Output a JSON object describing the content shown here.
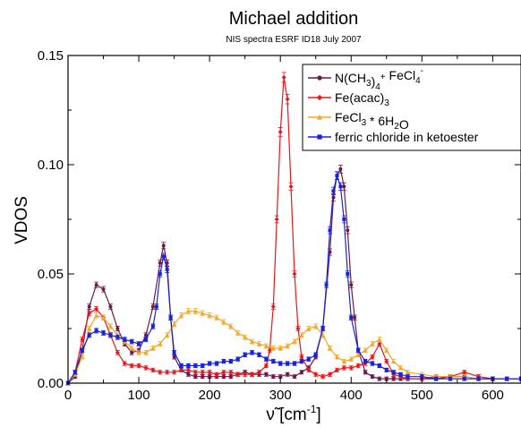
{
  "chart_data": {
    "type": "line",
    "title": "Michael addition",
    "subtitle": "NIS spectra ESRF ID18 July 2007",
    "xlabel": {
      "glyph": "ν̃",
      "open": " [cm",
      "sup": "-1",
      "close": "]"
    },
    "ylabel": "VDOS",
    "xlim": [
      0,
      640
    ],
    "ylim": [
      0,
      0.15
    ],
    "xticks": [
      "0",
      "100",
      "200",
      "300",
      "400",
      "500",
      "600"
    ],
    "yticks": [
      "0.00",
      "0.05",
      "0.10",
      "0.15"
    ],
    "legend_position": "top-right",
    "grid": false,
    "series": [
      {
        "name_parts": [
          [
            "N(CH",
            ""
          ],
          [
            "3",
            "sub"
          ],
          [
            ")",
            ""
          ],
          [
            "4",
            "sub"
          ],
          [
            "+",
            "sup"
          ],
          [
            " FeCl",
            ""
          ],
          [
            "4",
            "sub"
          ],
          [
            "-",
            "sup"
          ]
        ],
        "color": "#6b1a4a",
        "marker": "circle",
        "x": [
          0,
          10,
          20,
          30,
          40,
          50,
          60,
          70,
          80,
          90,
          100,
          110,
          120,
          130,
          135,
          140,
          145,
          150,
          160,
          170,
          180,
          190,
          200,
          210,
          220,
          230,
          240,
          250,
          260,
          270,
          280,
          290,
          300,
          310,
          320,
          330,
          340,
          350,
          360,
          370,
          375,
          380,
          385,
          390,
          395,
          400,
          405,
          410,
          420,
          430,
          440,
          450,
          460,
          470,
          480,
          500,
          520,
          540,
          560,
          580,
          600,
          620,
          640
        ],
        "y": [
          0.0,
          0.003,
          0.015,
          0.035,
          0.045,
          0.043,
          0.035,
          0.025,
          0.018,
          0.014,
          0.015,
          0.022,
          0.035,
          0.055,
          0.063,
          0.055,
          0.03,
          0.012,
          0.006,
          0.004,
          0.003,
          0.003,
          0.003,
          0.003,
          0.003,
          0.003,
          0.004,
          0.005,
          0.004,
          0.004,
          0.004,
          0.003,
          0.003,
          0.004,
          0.003,
          0.005,
          0.007,
          0.012,
          0.025,
          0.06,
          0.085,
          0.095,
          0.098,
          0.09,
          0.07,
          0.045,
          0.03,
          0.015,
          0.005,
          0.003,
          0.002,
          0.002,
          0.002,
          0.002,
          0.002,
          0.002,
          0.002,
          0.003,
          0.003,
          0.002,
          0.002,
          0.002,
          0.002
        ]
      },
      {
        "name_parts": [
          [
            "Fe(acac)",
            ""
          ],
          [
            "3",
            "sub"
          ]
        ],
        "color": "#e8161a",
        "marker": "diamond",
        "x": [
          0,
          10,
          20,
          30,
          40,
          50,
          60,
          70,
          80,
          90,
          100,
          110,
          120,
          130,
          140,
          150,
          160,
          170,
          180,
          190,
          200,
          210,
          220,
          230,
          240,
          250,
          260,
          270,
          280,
          285,
          290,
          295,
          300,
          305,
          310,
          315,
          320,
          325,
          330,
          340,
          350,
          360,
          370,
          380,
          390,
          400,
          410,
          420,
          430,
          440,
          450,
          460,
          470,
          480,
          500,
          520,
          540,
          560,
          580,
          600,
          620,
          640
        ],
        "y": [
          0.0,
          0.005,
          0.02,
          0.032,
          0.034,
          0.03,
          0.022,
          0.014,
          0.009,
          0.008,
          0.008,
          0.007,
          0.006,
          0.005,
          0.005,
          0.005,
          0.006,
          0.006,
          0.005,
          0.005,
          0.005,
          0.004,
          0.005,
          0.005,
          0.004,
          0.004,
          0.004,
          0.005,
          0.008,
          0.015,
          0.035,
          0.075,
          0.115,
          0.14,
          0.13,
          0.09,
          0.05,
          0.025,
          0.012,
          0.006,
          0.004,
          0.003,
          0.004,
          0.006,
          0.007,
          0.007,
          0.008,
          0.009,
          0.012,
          0.018,
          0.01,
          0.004,
          0.003,
          0.002,
          0.002,
          0.003,
          0.003,
          0.005,
          0.003,
          0.002,
          0.002,
          0.002
        ]
      },
      {
        "name_parts": [
          [
            "FeCl",
            ""
          ],
          [
            "3",
            "sub"
          ],
          [
            " * 6H",
            ""
          ],
          [
            "2",
            "sub"
          ],
          [
            "O",
            ""
          ]
        ],
        "color": "#f5a623",
        "marker": "triangle",
        "x": [
          0,
          10,
          20,
          30,
          40,
          50,
          60,
          70,
          80,
          90,
          100,
          110,
          120,
          130,
          140,
          150,
          160,
          170,
          180,
          190,
          200,
          210,
          220,
          230,
          240,
          250,
          260,
          270,
          280,
          290,
          300,
          310,
          320,
          330,
          340,
          350,
          360,
          370,
          380,
          390,
          400,
          410,
          420,
          430,
          440,
          450,
          460,
          470,
          480,
          500,
          520,
          540,
          560,
          580,
          600,
          620,
          640
        ],
        "y": [
          0.0,
          0.004,
          0.012,
          0.025,
          0.031,
          0.03,
          0.026,
          0.022,
          0.019,
          0.016,
          0.014,
          0.014,
          0.016,
          0.018,
          0.022,
          0.027,
          0.031,
          0.033,
          0.033,
          0.032,
          0.031,
          0.03,
          0.028,
          0.026,
          0.023,
          0.021,
          0.019,
          0.018,
          0.017,
          0.016,
          0.016,
          0.017,
          0.019,
          0.022,
          0.025,
          0.026,
          0.022,
          0.016,
          0.012,
          0.01,
          0.011,
          0.013,
          0.015,
          0.018,
          0.02,
          0.015,
          0.01,
          0.007,
          0.005,
          0.004,
          0.003,
          0.003,
          0.003,
          0.002,
          0.002,
          0.002,
          0.002
        ]
      },
      {
        "name_parts": [
          [
            "ferric chloride in ketoester",
            ""
          ]
        ],
        "color": "#1a22d8",
        "marker": "square",
        "x": [
          0,
          10,
          20,
          30,
          40,
          50,
          60,
          70,
          80,
          90,
          100,
          110,
          120,
          125,
          130,
          135,
          140,
          145,
          150,
          160,
          170,
          180,
          190,
          200,
          210,
          220,
          230,
          240,
          250,
          260,
          270,
          280,
          290,
          300,
          310,
          320,
          330,
          340,
          350,
          360,
          365,
          370,
          375,
          380,
          385,
          390,
          395,
          400,
          410,
          420,
          430,
          440,
          450,
          460,
          470,
          480,
          500,
          520,
          540,
          560,
          580,
          600,
          620,
          640
        ],
        "y": [
          0.0,
          0.005,
          0.015,
          0.022,
          0.024,
          0.023,
          0.022,
          0.021,
          0.02,
          0.019,
          0.018,
          0.02,
          0.026,
          0.035,
          0.05,
          0.058,
          0.052,
          0.03,
          0.014,
          0.008,
          0.008,
          0.008,
          0.008,
          0.009,
          0.009,
          0.01,
          0.01,
          0.011,
          0.013,
          0.014,
          0.013,
          0.011,
          0.01,
          0.009,
          0.009,
          0.009,
          0.01,
          0.011,
          0.013,
          0.025,
          0.045,
          0.07,
          0.088,
          0.095,
          0.09,
          0.075,
          0.05,
          0.03,
          0.015,
          0.01,
          0.009,
          0.008,
          0.006,
          0.005,
          0.004,
          0.003,
          0.003,
          0.002,
          0.002,
          0.002,
          0.002,
          0.002,
          0.002,
          0.002
        ]
      }
    ]
  }
}
